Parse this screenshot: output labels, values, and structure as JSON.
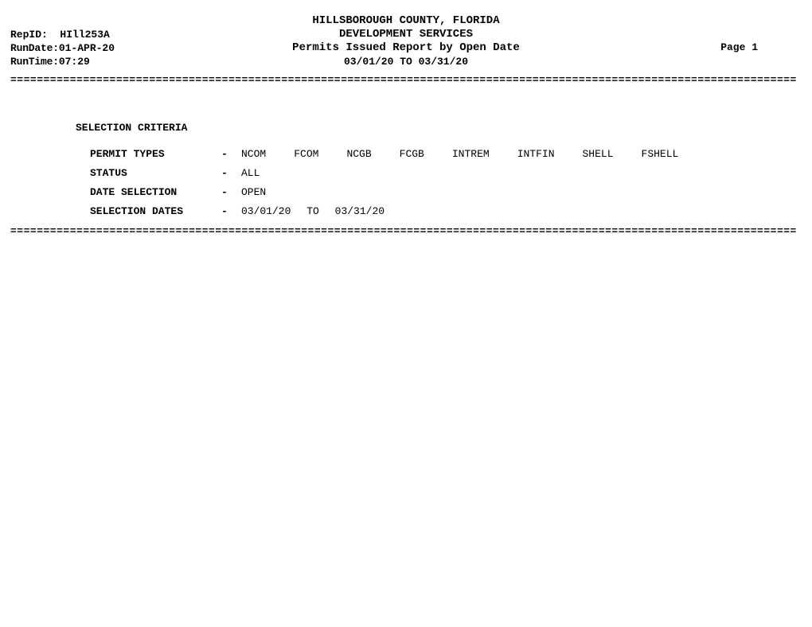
{
  "header": {
    "county": "HILLSBOROUGH COUNTY, FLORIDA",
    "dept": "DEVELOPMENT SERVICES",
    "report_name": "Permits Issued Report by Open Date",
    "date_range": "03/01/20 TO 03/31/20",
    "repid_label": "RepID:",
    "repid_value": "HIll253A",
    "rundate_label": "RunDate:",
    "rundate_value": "01-APR-20",
    "runtime_label": "RunTime:",
    "runtime_value": "07:29",
    "page_label": "Page 1"
  },
  "criteria": {
    "title": "SELECTION CRITERIA",
    "permit_types_label": "PERMIT TYPES",
    "status_label": "STATUS",
    "date_selection_label": "DATE SELECTION",
    "selection_dates_label": "SELECTION DATES",
    "dash": "-",
    "permit_types": [
      "NCOM",
      "FCOM",
      "NCGB",
      "FCGB",
      "INTREM",
      "INTFIN",
      "SHELL",
      "FSHELL"
    ],
    "status_value": "ALL",
    "date_selection_value": "OPEN",
    "selection_from": "03/01/20",
    "selection_to_label": "TO",
    "selection_to": "03/31/20"
  },
  "divider": "======================================================================================================================="
}
